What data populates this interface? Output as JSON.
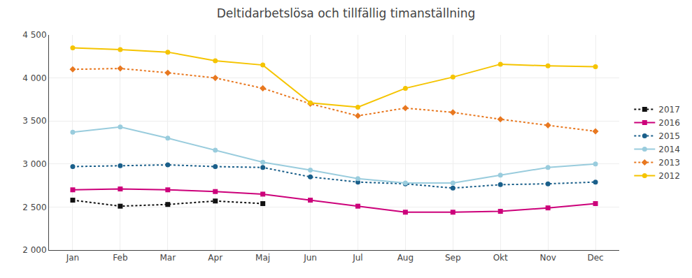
{
  "chart_data": {
    "type": "line",
    "title": "Deltidarbetslösa och tillfällig timanställning",
    "categories": [
      "Jan",
      "Feb",
      "Mar",
      "Apr",
      "Maj",
      "Jun",
      "Jul",
      "Aug",
      "Sep",
      "Okt",
      "Nov",
      "Dec"
    ],
    "series": [
      {
        "name": "2017",
        "color": "#111111",
        "line_style": "dotted",
        "marker": "square",
        "values": [
          2580,
          2510,
          2530,
          2570,
          2540,
          null,
          null,
          null,
          null,
          null,
          null,
          null
        ]
      },
      {
        "name": "2016",
        "color": "#cc007a",
        "line_style": "solid",
        "marker": "square",
        "values": [
          2700,
          2710,
          2700,
          2680,
          2650,
          2580,
          2510,
          2440,
          2440,
          2450,
          2490,
          2540
        ]
      },
      {
        "name": "2015",
        "color": "#1a5f8a",
        "line_style": "dotted",
        "marker": "circle",
        "values": [
          2970,
          2980,
          2990,
          2970,
          2960,
          2850,
          2790,
          2770,
          2720,
          2760,
          2770,
          2790
        ]
      },
      {
        "name": "2014",
        "color": "#99ccdd",
        "line_style": "solid",
        "marker": "circle",
        "values": [
          3370,
          3430,
          3300,
          3160,
          3020,
          2930,
          2830,
          2780,
          2780,
          2870,
          2960,
          3000
        ]
      },
      {
        "name": "2013",
        "color": "#e87820",
        "line_style": "dotted",
        "marker": "diamond",
        "values": [
          4100,
          4110,
          4060,
          4000,
          3880,
          3700,
          3560,
          3650,
          3600,
          3520,
          3450,
          3380
        ]
      },
      {
        "name": "2012",
        "color": "#f5c400",
        "line_style": "solid",
        "marker": "circle",
        "values": [
          4350,
          4330,
          4300,
          4200,
          4150,
          3710,
          3660,
          3880,
          4010,
          4160,
          4140,
          4130
        ]
      }
    ],
    "ylim": [
      2000,
      4500
    ],
    "yticks": [
      {
        "value": 2000,
        "label": "2 000"
      },
      {
        "value": 2500,
        "label": "2 500"
      },
      {
        "value": 3000,
        "label": "3 000"
      },
      {
        "value": 3500,
        "label": "3 500"
      },
      {
        "value": 4000,
        "label": "4 000"
      },
      {
        "value": 4500,
        "label": "4 500"
      }
    ],
    "grid": true,
    "legend": "right"
  }
}
